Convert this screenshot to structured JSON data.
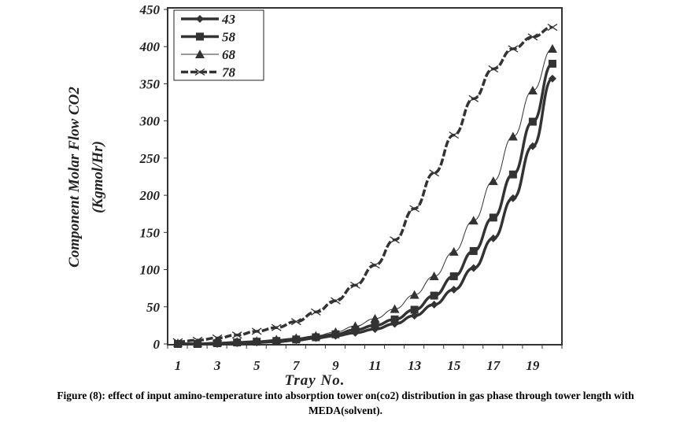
{
  "chart_data": {
    "type": "line",
    "title": "",
    "xlabel": "Tray No.",
    "ylabel": "Component Molar Flow CO2",
    "ylabel_unit": "(Kgmol/Hr)",
    "x": [
      1,
      2,
      3,
      4,
      5,
      6,
      7,
      8,
      9,
      10,
      11,
      12,
      13,
      14,
      15,
      16,
      17,
      18,
      19,
      20
    ],
    "xticks": [
      "1",
      "3",
      "5",
      "7",
      "9",
      "11",
      "13",
      "15",
      "17",
      "19"
    ],
    "yticks": [
      "0",
      "50",
      "100",
      "150",
      "200",
      "250",
      "300",
      "350",
      "400",
      "450"
    ],
    "ylim": [
      0,
      450
    ],
    "legend_position": "top-left",
    "series": [
      {
        "name": "43",
        "marker": "diamond",
        "values": [
          0,
          0,
          0,
          1,
          2,
          3,
          5,
          8,
          11,
          15,
          20,
          27,
          38,
          53,
          73,
          102,
          142,
          196,
          266,
          357
        ]
      },
      {
        "name": "58",
        "marker": "square",
        "values": [
          0,
          0,
          1,
          2,
          3,
          4,
          6,
          9,
          13,
          19,
          25,
          33,
          46,
          65,
          91,
          125,
          170,
          228,
          299,
          377
        ]
      },
      {
        "name": "68",
        "marker": "triangle",
        "values": [
          1,
          1,
          2,
          3,
          4,
          6,
          8,
          11,
          16,
          24,
          34,
          47,
          66,
          91,
          124,
          166,
          219,
          279,
          341,
          397
        ]
      },
      {
        "name": "78",
        "marker": "x",
        "values": [
          3,
          5,
          8,
          12,
          17,
          22,
          30,
          43,
          58,
          79,
          106,
          140,
          182,
          230,
          281,
          330,
          370,
          397,
          413,
          426
        ]
      }
    ]
  },
  "caption": {
    "line1": "Figure (8): effect of input amino-temperature into absorption tower on(co2) distribution in gas phase through tower length with",
    "line2": "MEDA(solvent)."
  }
}
